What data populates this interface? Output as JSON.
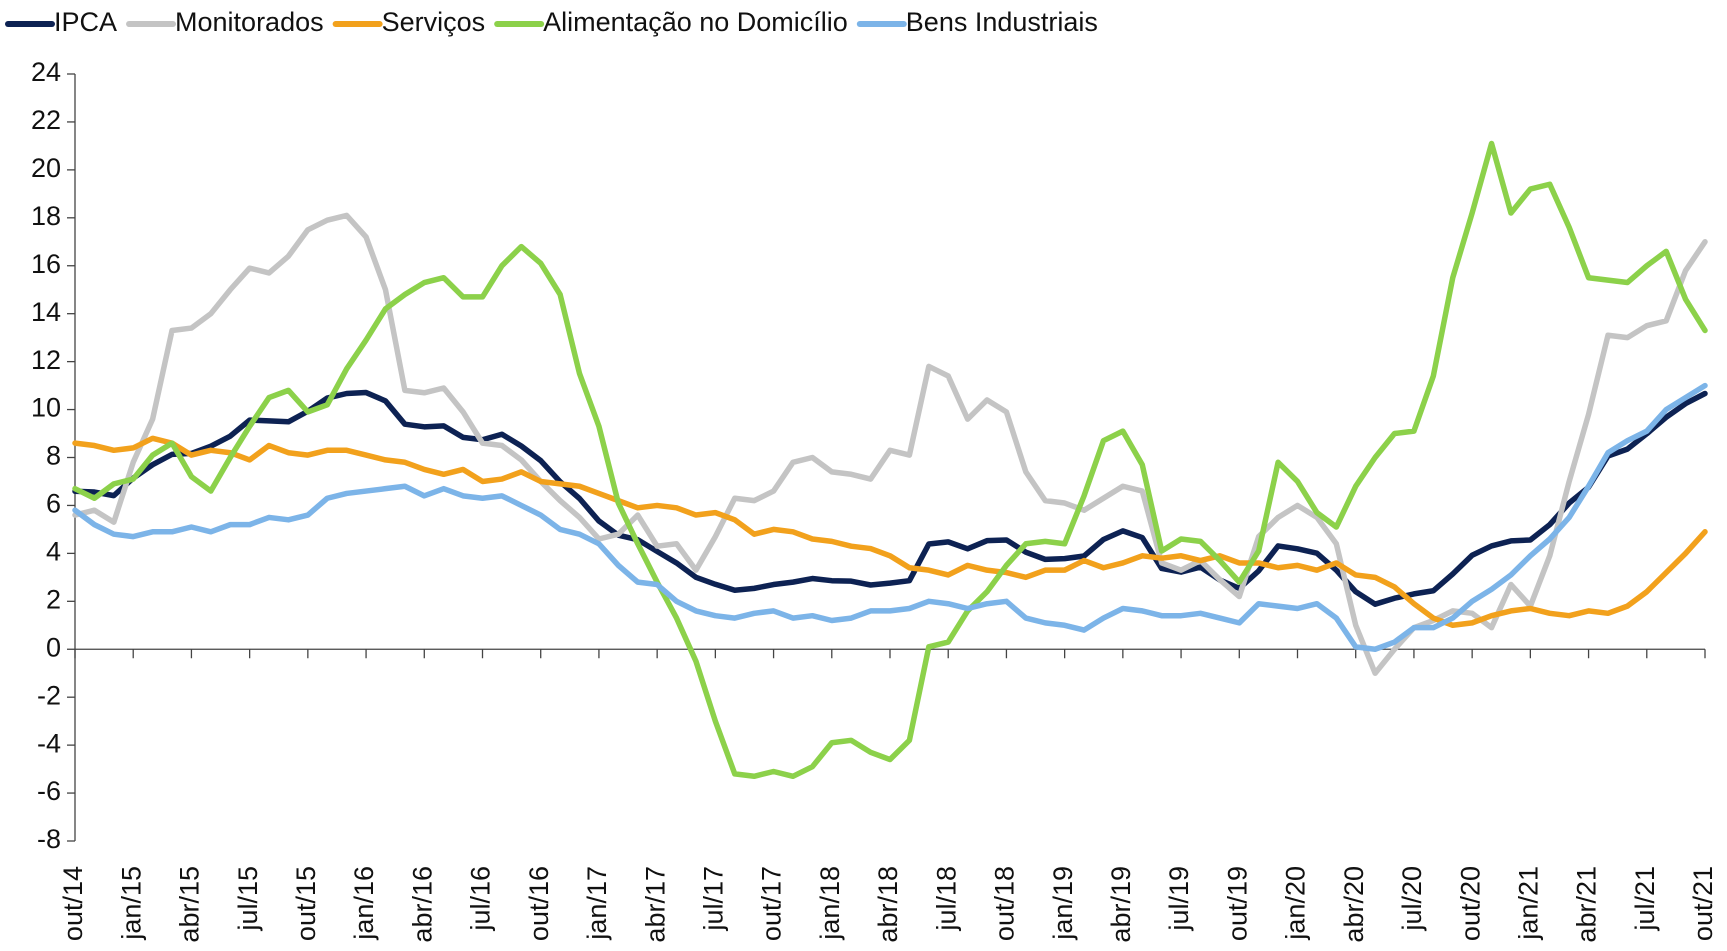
{
  "chart_data": {
    "type": "line",
    "categories": [
      "out/14",
      null,
      null,
      "jan/15",
      null,
      null,
      "abr/15",
      null,
      null,
      "jul/15",
      null,
      null,
      "out/15",
      null,
      null,
      "jan/16",
      null,
      null,
      "abr/16",
      null,
      null,
      "jul/16",
      null,
      null,
      "out/16",
      null,
      null,
      "jan/17",
      null,
      null,
      "abr/17",
      null,
      null,
      "jul/17",
      null,
      null,
      "out/17",
      null,
      null,
      "jan/18",
      null,
      null,
      "abr/18",
      null,
      null,
      "jul/18",
      null,
      null,
      "out/18",
      null,
      null,
      "jan/19",
      null,
      null,
      "abr/19",
      null,
      null,
      "jul/19",
      null,
      null,
      "out/19",
      null,
      null,
      "jan/20",
      null,
      null,
      "abr/20",
      null,
      null,
      "jul/20",
      null,
      null,
      "out/20",
      null,
      null,
      "jan/21",
      null,
      null,
      "abr/21",
      null,
      null,
      "jul/21",
      null,
      null,
      "out/21"
    ],
    "series": [
      {
        "name": "IPCA",
        "color": "#0d2253",
        "values": [
          6.59,
          6.56,
          6.41,
          7.14,
          7.7,
          8.13,
          8.17,
          8.47,
          8.89,
          9.56,
          9.53,
          9.49,
          9.93,
          10.48,
          10.67,
          10.71,
          10.36,
          9.39,
          9.28,
          9.32,
          8.84,
          8.74,
          8.97,
          8.48,
          7.87,
          6.99,
          6.29,
          5.35,
          4.76,
          4.57,
          4.08,
          3.6,
          3.0,
          2.71,
          2.46,
          2.54,
          2.7,
          2.8,
          2.95,
          2.86,
          2.84,
          2.68,
          2.76,
          2.86,
          4.39,
          4.48,
          4.19,
          4.53,
          4.56,
          4.05,
          3.75,
          3.78,
          3.89,
          4.58,
          4.94,
          4.66,
          3.37,
          3.22,
          3.43,
          2.89,
          2.54,
          3.27,
          4.31,
          4.19,
          4.01,
          3.3,
          2.4,
          1.88,
          2.13,
          2.31,
          2.44,
          3.14,
          3.92,
          4.31,
          4.52,
          4.56,
          5.2,
          6.1,
          6.76,
          8.06,
          8.35,
          8.99,
          9.68,
          10.25,
          10.67
        ]
      },
      {
        "name": "Monitorados",
        "color": "#c4c4c4",
        "values": [
          5.6,
          5.8,
          5.3,
          7.8,
          9.6,
          13.3,
          13.4,
          14.0,
          15.0,
          15.9,
          15.7,
          16.4,
          17.5,
          17.9,
          18.1,
          17.2,
          15.0,
          10.8,
          10.7,
          10.9,
          9.9,
          8.6,
          8.5,
          7.9,
          7.0,
          6.2,
          5.5,
          4.6,
          4.8,
          5.6,
          4.3,
          4.4,
          3.3,
          4.7,
          6.3,
          6.2,
          6.6,
          7.8,
          8.0,
          7.4,
          7.3,
          7.1,
          8.3,
          8.1,
          11.8,
          11.4,
          9.6,
          10.4,
          9.9,
          7.4,
          6.2,
          6.1,
          5.8,
          6.3,
          6.8,
          6.6,
          3.6,
          3.3,
          3.7,
          2.9,
          2.2,
          4.7,
          5.5,
          6.0,
          5.5,
          4.4,
          1.0,
          -1.0,
          0.0,
          0.9,
          1.2,
          1.6,
          1.5,
          0.9,
          2.7,
          1.8,
          3.9,
          7.0,
          9.8,
          13.1,
          13.0,
          13.5,
          13.7,
          15.8,
          17.0
        ]
      },
      {
        "name": "Serviços",
        "color": "#f2a11c",
        "values": [
          8.6,
          8.5,
          8.3,
          8.4,
          8.8,
          8.6,
          8.1,
          8.3,
          8.2,
          7.9,
          8.5,
          8.2,
          8.1,
          8.3,
          8.3,
          8.1,
          7.9,
          7.8,
          7.5,
          7.3,
          7.5,
          7.0,
          7.1,
          7.4,
          7.0,
          6.9,
          6.8,
          6.5,
          6.2,
          5.9,
          6.0,
          5.9,
          5.6,
          5.7,
          5.4,
          4.8,
          5.0,
          4.9,
          4.6,
          4.5,
          4.3,
          4.2,
          3.9,
          3.4,
          3.3,
          3.1,
          3.5,
          3.3,
          3.2,
          3.0,
          3.3,
          3.3,
          3.7,
          3.4,
          3.6,
          3.9,
          3.8,
          3.9,
          3.7,
          3.9,
          3.6,
          3.6,
          3.4,
          3.5,
          3.3,
          3.6,
          3.1,
          3.0,
          2.6,
          1.9,
          1.3,
          1.0,
          1.1,
          1.4,
          1.6,
          1.7,
          1.5,
          1.4,
          1.6,
          1.5,
          1.8,
          2.4,
          3.2,
          4.0,
          4.9
        ]
      },
      {
        "name": "Alimentação no Domicílio",
        "color": "#8cd14a",
        "values": [
          6.7,
          6.3,
          6.9,
          7.1,
          8.1,
          8.6,
          7.2,
          6.6,
          8.0,
          9.3,
          10.5,
          10.8,
          9.9,
          10.2,
          11.7,
          12.9,
          14.2,
          14.8,
          15.3,
          15.5,
          14.7,
          14.7,
          16.0,
          16.8,
          16.1,
          14.8,
          11.5,
          9.3,
          6.1,
          4.4,
          2.8,
          1.3,
          -0.5,
          -3.0,
          -5.2,
          -5.3,
          -5.1,
          -5.3,
          -4.9,
          -3.9,
          -3.8,
          -4.3,
          -4.6,
          -3.8,
          0.1,
          0.3,
          1.6,
          2.4,
          3.5,
          4.4,
          4.5,
          4.4,
          6.4,
          8.7,
          9.1,
          7.7,
          4.1,
          4.6,
          4.5,
          3.7,
          2.8,
          4.1,
          7.8,
          7.0,
          5.7,
          5.1,
          6.8,
          8.0,
          9.0,
          9.1,
          11.4,
          15.5,
          18.2,
          21.1,
          18.2,
          19.2,
          19.4,
          17.6,
          15.5,
          15.4,
          15.3,
          16.0,
          16.6,
          14.6,
          13.3
        ]
      },
      {
        "name": "Bens Industriais",
        "color": "#7cb4e8",
        "values": [
          5.8,
          5.2,
          4.8,
          4.7,
          4.9,
          4.9,
          5.1,
          4.9,
          5.2,
          5.2,
          5.5,
          5.4,
          5.6,
          6.3,
          6.5,
          6.6,
          6.7,
          6.8,
          6.4,
          6.7,
          6.4,
          6.3,
          6.4,
          6.0,
          5.6,
          5.0,
          4.8,
          4.4,
          3.5,
          2.8,
          2.7,
          2.0,
          1.6,
          1.4,
          1.3,
          1.5,
          1.6,
          1.3,
          1.4,
          1.2,
          1.3,
          1.6,
          1.6,
          1.7,
          2.0,
          1.9,
          1.7,
          1.9,
          2.0,
          1.3,
          1.1,
          1.0,
          0.8,
          1.3,
          1.7,
          1.6,
          1.4,
          1.4,
          1.5,
          1.3,
          1.1,
          1.9,
          1.8,
          1.7,
          1.9,
          1.3,
          0.1,
          0.0,
          0.3,
          0.9,
          0.9,
          1.3,
          2.0,
          2.5,
          3.1,
          3.9,
          4.6,
          5.5,
          6.8,
          8.2,
          8.7,
          9.1,
          10.0,
          10.5,
          11.0
        ]
      }
    ],
    "ylim": [
      -8,
      24
    ],
    "yticks": [
      -8,
      -6,
      -4,
      -2,
      0,
      2,
      4,
      6,
      8,
      10,
      12,
      14,
      16,
      18,
      20,
      22,
      24
    ],
    "grid": false,
    "legend": "top"
  }
}
